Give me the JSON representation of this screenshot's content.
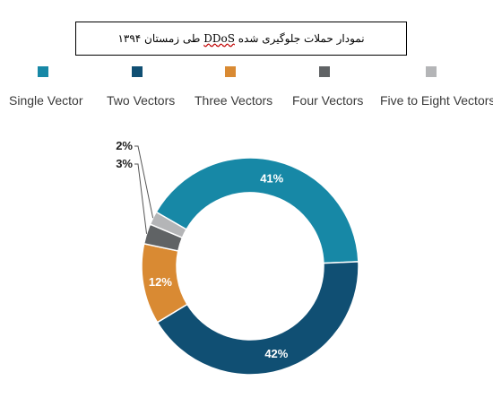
{
  "title_prefix": "نمودار حملات جلوگیری شده",
  "title_ddos": "DDoS",
  "title_suffix": "طی زمستان ۱۳۹۴",
  "chart_data": {
    "type": "pie",
    "subtype": "donut",
    "legend_position": "top",
    "categories": [
      "Single Vector",
      "Two Vectors",
      "Three Vectors",
      "Four Vectors",
      "Five to Eight Vectors"
    ],
    "values": [
      41,
      42,
      12,
      3,
      2
    ],
    "labels": [
      "41%",
      "42%",
      "12%",
      "3%",
      "2%"
    ],
    "colors": [
      "#1788a6",
      "#104f73",
      "#d98a33",
      "#606365",
      "#b4b5b7"
    ]
  }
}
